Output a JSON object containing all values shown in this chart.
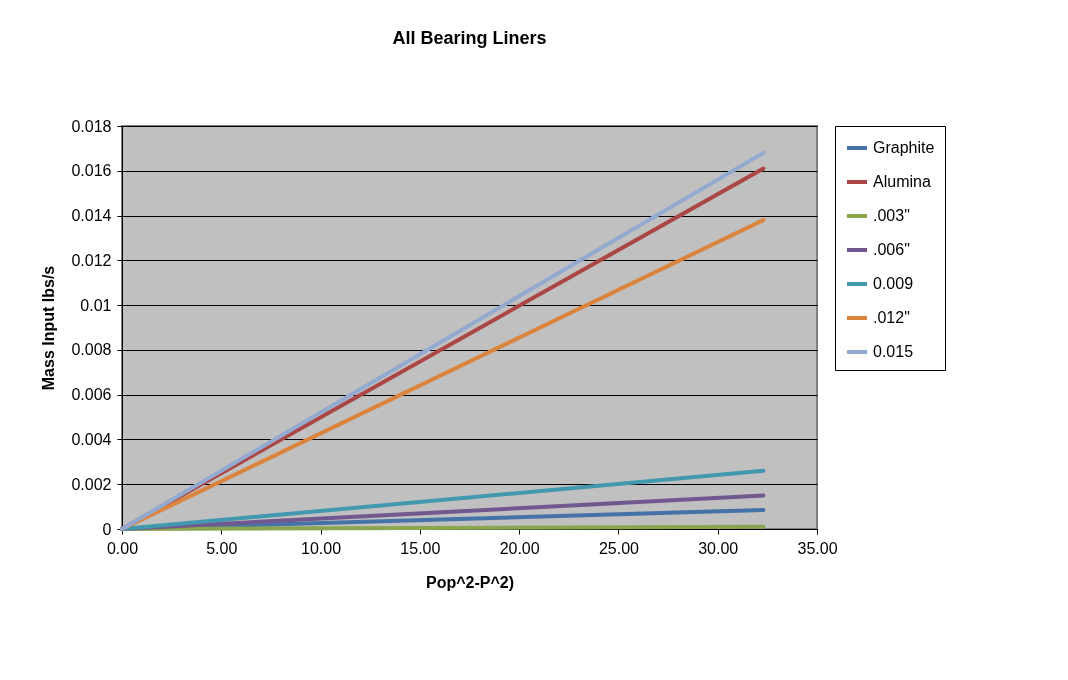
{
  "chart_data": {
    "type": "line",
    "title": "All Bearing Liners",
    "xlabel": "Pop^2-P^2)",
    "ylabel": "Mass Input lbs/s",
    "x": [
      0,
      32.3
    ],
    "series": [
      {
        "name": "Graphite",
        "color": "#4573a7",
        "values": [
          0,
          0.00085
        ]
      },
      {
        "name": "Alumina",
        "color": "#aa4643",
        "values": [
          0,
          0.0161
        ]
      },
      {
        "name": ".003\"",
        "color": "#89a54e",
        "values": [
          0,
          0.0001
        ]
      },
      {
        "name": ".006\"",
        "color": "#71588f",
        "values": [
          0,
          0.0015
        ]
      },
      {
        "name": "0.009",
        "color": "#4198af",
        "values": [
          0,
          0.0026
        ]
      },
      {
        "name": ".012\"",
        "color": "#db843d",
        "values": [
          0,
          0.0138
        ]
      },
      {
        "name": "0.015",
        "color": "#93a9cf",
        "values": [
          0,
          0.0168
        ]
      }
    ],
    "xlim": [
      0,
      35
    ],
    "xticks": [
      {
        "value": 0,
        "label": "0.00"
      },
      {
        "value": 5,
        "label": "5.00"
      },
      {
        "value": 10,
        "label": "10.00"
      },
      {
        "value": 15,
        "label": "15.00"
      },
      {
        "value": 20,
        "label": "20.00"
      },
      {
        "value": 25,
        "label": "25.00"
      },
      {
        "value": 30,
        "label": "30.00"
      },
      {
        "value": 35,
        "label": "35.00"
      }
    ],
    "ylim": [
      0,
      0.018
    ],
    "yticks": [
      0,
      0.002,
      0.004,
      0.006,
      0.008,
      0.01,
      0.012,
      0.014,
      0.016,
      0.018
    ],
    "grid": "y",
    "legend": "right",
    "marker": "none",
    "line_style": "solid"
  }
}
